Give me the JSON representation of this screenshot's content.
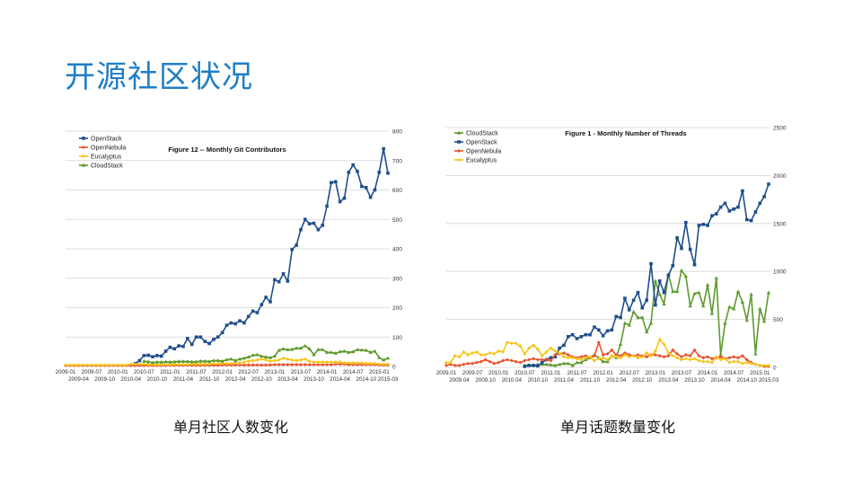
{
  "slide": {
    "title": "开源社区状况",
    "caption_left": "单月社区人数变化",
    "caption_right": "单月话题数量变化"
  },
  "colors": {
    "OpenStack": "#1f4e8c",
    "OpenNebula": "#e8502a",
    "Eucalyptus": "#f5c518",
    "CloudStack": "#5e9a2e"
  },
  "chart_data": [
    {
      "type": "line",
      "title": "Figure 12 -- Monthly Git Contributors",
      "xlabel": "",
      "ylabel": "",
      "x_start": "2009-01",
      "x_end": "2015-03",
      "months": 75,
      "ylim": [
        0,
        800
      ],
      "yticks": [
        "0",
        "100",
        "200",
        "300",
        "400",
        "500",
        "600",
        "700",
        "800"
      ],
      "xticks": [
        "2009-01",
        "2009-04",
        "2009-07",
        "2009-10",
        "2010-01",
        "2010-04",
        "2010-07",
        "2010-10",
        "2011-01",
        "2011-04",
        "2011-07",
        "2011-10",
        "2012-01",
        "2012-04",
        "2012-07",
        "2012-10",
        "2013-01",
        "2013-04",
        "2013-07",
        "2013-10",
        "2014-01",
        "2014-04",
        "2014-07",
        "2014-10",
        "2015-01",
        "2015-03"
      ],
      "legend": "top-left",
      "grid": true,
      "series": [
        {
          "name": "OpenStack",
          "marker": "square",
          "values": [
            null,
            null,
            null,
            null,
            null,
            null,
            null,
            null,
            null,
            null,
            null,
            null,
            null,
            null,
            null,
            null,
            10,
            20,
            37,
            38,
            33,
            37,
            35,
            52,
            65,
            60,
            70,
            68,
            95,
            75,
            100,
            100,
            85,
            78,
            92,
            100,
            115,
            140,
            148,
            145,
            155,
            148,
            170,
            188,
            183,
            210,
            235,
            220,
            295,
            288,
            315,
            290,
            398,
            412,
            465,
            500,
            485,
            487,
            465,
            480,
            545,
            625,
            628,
            560,
            572,
            660,
            685,
            663,
            612,
            608,
            575,
            600,
            660,
            740,
            657
          ]
        },
        {
          "name": "OpenNebula",
          "marker": "diamond",
          "values": [
            3,
            3,
            3,
            3,
            3,
            3,
            3,
            3,
            3,
            3,
            3,
            3,
            3,
            3,
            3,
            3,
            3,
            3,
            3,
            3,
            3,
            3,
            3,
            3,
            4,
            4,
            4,
            4,
            4,
            4,
            4,
            4,
            4,
            4,
            4,
            4,
            5,
            5,
            5,
            5,
            5,
            5,
            5,
            5,
            5,
            5,
            5,
            5,
            6,
            6,
            6,
            6,
            6,
            6,
            6,
            6,
            6,
            6,
            6,
            6,
            6,
            6,
            8,
            8,
            8,
            6,
            6,
            6,
            6,
            6,
            6,
            6,
            5,
            5,
            5
          ]
        },
        {
          "name": "Eucalyptus",
          "marker": "diamond",
          "values": [
            5,
            5,
            5,
            5,
            5,
            5,
            5,
            5,
            5,
            5,
            5,
            5,
            5,
            5,
            5,
            8,
            8,
            8,
            8,
            6,
            6,
            6,
            6,
            6,
            6,
            7,
            7,
            7,
            7,
            8,
            8,
            8,
            8,
            8,
            10,
            10,
            10,
            10,
            10,
            12,
            12,
            15,
            18,
            20,
            22,
            25,
            22,
            18,
            20,
            22,
            28,
            25,
            22,
            20,
            22,
            25,
            18,
            15,
            15,
            15,
            15,
            15,
            15,
            15,
            12,
            12,
            12,
            12,
            12,
            10,
            10,
            10,
            8,
            8,
            8
          ]
        },
        {
          "name": "CloudStack",
          "marker": "triangle",
          "values": [
            null,
            null,
            null,
            null,
            null,
            null,
            null,
            null,
            null,
            null,
            null,
            null,
            null,
            null,
            null,
            null,
            null,
            null,
            18,
            16,
            13,
            15,
            15,
            16,
            15,
            16,
            17,
            17,
            17,
            16,
            16,
            18,
            18,
            17,
            20,
            20,
            18,
            23,
            25,
            20,
            25,
            28,
            32,
            38,
            40,
            35,
            32,
            30,
            35,
            55,
            60,
            57,
            58,
            62,
            62,
            70,
            60,
            40,
            57,
            57,
            48,
            48,
            45,
            50,
            52,
            48,
            50,
            57,
            56,
            55,
            48,
            52,
            30,
            22,
            28
          ]
        }
      ]
    },
    {
      "type": "line",
      "title": "Figure 1 - Monthly Number of Threads",
      "xlabel": "",
      "ylabel": "",
      "x_start": "2009.01",
      "x_end": "2015.03",
      "months": 75,
      "ylim": [
        0,
        2500
      ],
      "yticks": [
        "0",
        "500",
        "1000",
        "1500",
        "2000",
        "2500"
      ],
      "xticks": [
        "2009.01",
        "2009.04",
        "2009.07",
        "2009.10",
        "2010.01",
        "2010.04",
        "2010.07",
        "2010.10",
        "2011.01",
        "2011.04",
        "2011.07",
        "2011.10",
        "2012.01",
        "2012.04",
        "2012.07",
        "2012.10",
        "2013.01",
        "2013.04",
        "2013.07",
        "2013.10",
        "2014.01",
        "2014.04",
        "2014.07",
        "2014.10",
        "2015.01",
        "2015.03"
      ],
      "legend": "top-left",
      "grid": true,
      "series": [
        {
          "name": "CloudStack",
          "marker": "triangle",
          "values": [
            null,
            null,
            null,
            null,
            null,
            null,
            null,
            null,
            null,
            null,
            null,
            null,
            null,
            null,
            null,
            null,
            null,
            null,
            20,
            20,
            20,
            30,
            30,
            30,
            25,
            20,
            30,
            40,
            40,
            20,
            50,
            50,
            80,
            100,
            130,
            100,
            60,
            60,
            120,
            100,
            240,
            460,
            440,
            580,
            520,
            520,
            370,
            460,
            900,
            760,
            660,
            970,
            790,
            790,
            1010,
            950,
            640,
            770,
            780,
            640,
            860,
            560,
            930,
            130,
            460,
            630,
            610,
            790,
            680,
            490,
            760,
            140,
            610,
            480,
            780
          ]
        },
        {
          "name": "OpenStack",
          "marker": "square",
          "values": [
            null,
            null,
            null,
            null,
            null,
            null,
            null,
            null,
            null,
            null,
            null,
            null,
            null,
            null,
            null,
            null,
            null,
            null,
            10,
            20,
            20,
            15,
            50,
            80,
            100,
            110,
            200,
            230,
            320,
            340,
            300,
            320,
            340,
            340,
            420,
            390,
            330,
            380,
            390,
            530,
            520,
            720,
            600,
            700,
            780,
            620,
            700,
            1080,
            650,
            900,
            780,
            960,
            1060,
            1350,
            1240,
            1510,
            1230,
            1070,
            1480,
            1490,
            1480,
            1580,
            1600,
            1670,
            1710,
            1630,
            1650,
            1670,
            1840,
            1540,
            1530,
            1620,
            1710,
            1780,
            1910
          ]
        },
        {
          "name": "OpenNebula",
          "marker": "diamond",
          "values": [
            20,
            30,
            20,
            20,
            30,
            40,
            40,
            50,
            60,
            80,
            60,
            40,
            50,
            70,
            80,
            70,
            60,
            50,
            70,
            80,
            90,
            80,
            80,
            80,
            70,
            130,
            140,
            150,
            130,
            110,
            100,
            110,
            120,
            100,
            120,
            260,
            130,
            140,
            180,
            130,
            120,
            150,
            130,
            120,
            130,
            120,
            110,
            130,
            130,
            120,
            110,
            120,
            180,
            140,
            110,
            130,
            120,
            180,
            120,
            100,
            110,
            90,
            100,
            110,
            90,
            100,
            110,
            100,
            120,
            80,
            50,
            30,
            20,
            10,
            10
          ]
        },
        {
          "name": "Eucalyptus",
          "marker": "diamond",
          "values": [
            50,
            50,
            120,
            110,
            160,
            130,
            150,
            160,
            130,
            130,
            150,
            140,
            170,
            160,
            260,
            250,
            250,
            220,
            140,
            200,
            230,
            190,
            120,
            160,
            200,
            170,
            150,
            110,
            100,
            100,
            90,
            80,
            100,
            110,
            70,
            90,
            100,
            80,
            120,
            110,
            100,
            130,
            110,
            120,
            100,
            110,
            150,
            120,
            170,
            290,
            240,
            150,
            120,
            100,
            80,
            90,
            80,
            90,
            70,
            60,
            60,
            50,
            110,
            80,
            90,
            50,
            60,
            60,
            40,
            50,
            40,
            30,
            20,
            20,
            20
          ]
        }
      ]
    }
  ]
}
